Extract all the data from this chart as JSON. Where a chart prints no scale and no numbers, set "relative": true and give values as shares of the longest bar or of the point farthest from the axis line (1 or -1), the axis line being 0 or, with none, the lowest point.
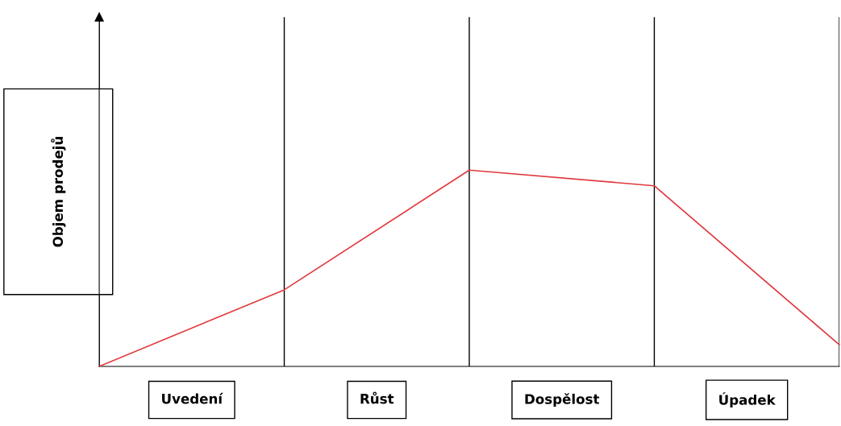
{
  "chart_data": {
    "type": "line",
    "relative": true,
    "ylabel": "Objem prodejů",
    "categories": [
      null,
      null,
      null,
      null,
      null
    ],
    "annotations": [
      "Uvedení",
      "Růst",
      "Dospělost",
      "Úpadek"
    ],
    "series": [
      {
        "color": "#e0393e",
        "values": [
          0,
          0.39,
          1,
          0.92,
          0.11
        ]
      }
    ],
    "grid": "x",
    "marker": "none",
    "line_style": "solid"
  }
}
